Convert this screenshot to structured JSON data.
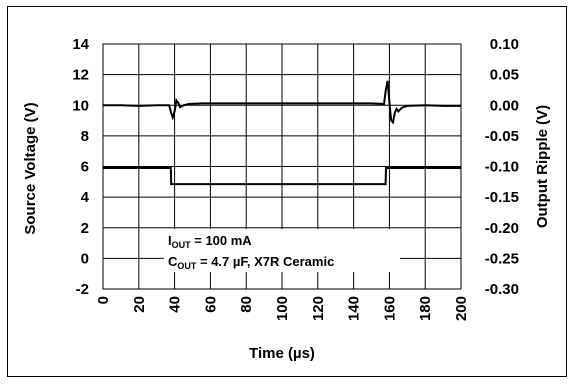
{
  "chart_data": {
    "type": "line",
    "xlabel": "Time (µs)",
    "ylabel_left": "Source Voltage (V)",
    "ylabel_right": "Output Ripple (V)",
    "xlim": [
      0,
      200
    ],
    "ylim_left": [
      -2,
      14
    ],
    "ylim_right": [
      -0.3,
      0.1
    ],
    "x_ticks": [
      "0",
      "20",
      "40",
      "60",
      "80",
      "100",
      "120",
      "140",
      "160",
      "180",
      "200"
    ],
    "y_left_ticks": [
      "14",
      "12",
      "10",
      "8",
      "6",
      "4",
      "2",
      "0",
      "-2"
    ],
    "y_right_ticks": [
      "0.10",
      "0.05",
      "0.00",
      "-0.05",
      "-0.10",
      "-0.15",
      "-0.20",
      "-0.25",
      "-0.30"
    ],
    "grid": true,
    "annotation": {
      "iout_main": "I",
      "iout_sub": "OUT",
      "iout_rest": " = 100 mA",
      "cout_main": "C",
      "cout_sub": "OUT",
      "cout_rest": " = 4.7 µF, X7R Ceramic"
    },
    "series": [
      {
        "axis": "left",
        "x": [
          0,
          10,
          20,
          30,
          37.9,
          38.1,
          50,
          60,
          80,
          100,
          120,
          140,
          150,
          157.9,
          158.1,
          170,
          180,
          190,
          200
        ],
        "values": [
          5.9,
          5.9,
          5.9,
          5.9,
          5.9,
          4.85,
          4.85,
          4.85,
          4.85,
          4.85,
          4.85,
          4.85,
          4.85,
          4.85,
          5.9,
          5.9,
          5.9,
          5.9,
          5.9
        ]
      },
      {
        "axis": "right",
        "x": [
          0,
          10,
          20,
          30,
          37,
          38,
          39,
          40,
          41,
          42,
          43,
          45,
          48,
          55,
          70,
          90,
          110,
          130,
          150,
          157,
          158,
          159,
          160,
          161,
          162,
          163,
          164,
          165,
          167,
          170,
          180,
          190,
          200
        ],
        "values": [
          0.0,
          0.0,
          -0.001,
          0.0,
          0.0,
          -0.012,
          -0.02,
          -0.01,
          0.008,
          0.004,
          -0.003,
          0.0,
          0.002,
          0.003,
          0.003,
          0.003,
          0.003,
          0.003,
          0.003,
          0.002,
          0.025,
          0.04,
          0.005,
          -0.025,
          -0.028,
          -0.012,
          -0.006,
          -0.01,
          -0.004,
          -0.001,
          0.0,
          -0.001,
          -0.001
        ]
      }
    ]
  }
}
